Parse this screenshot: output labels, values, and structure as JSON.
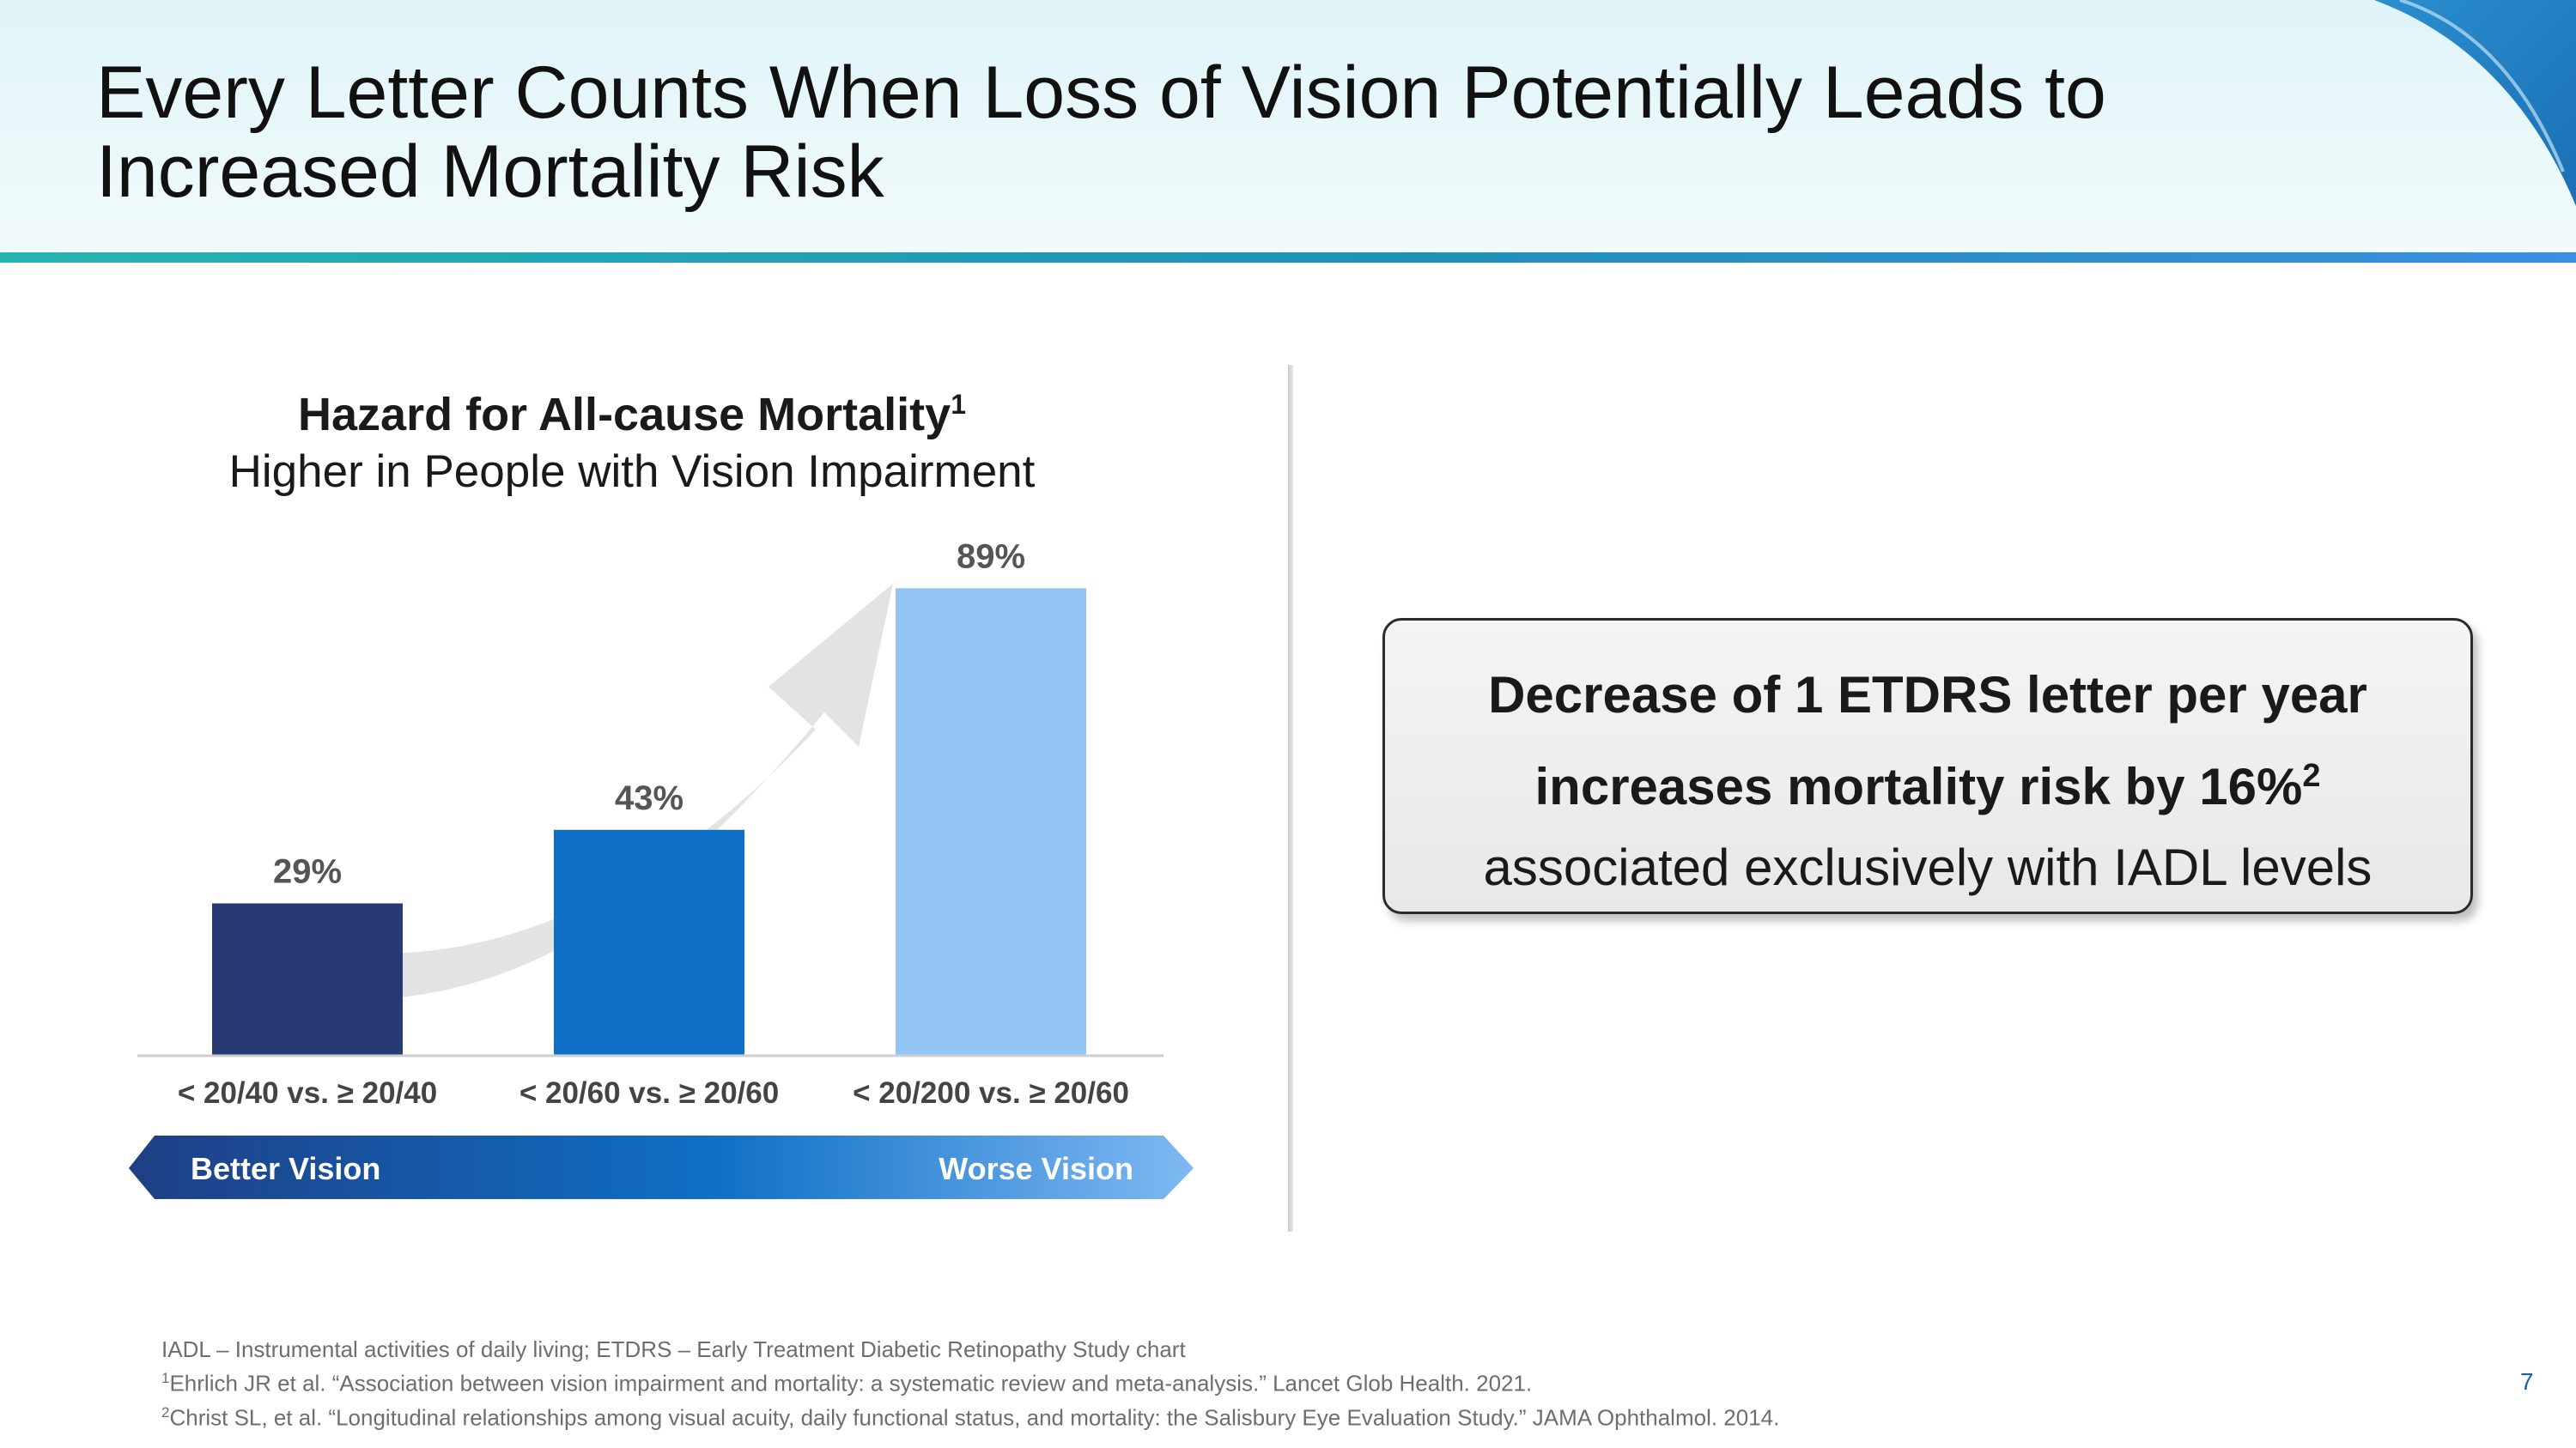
{
  "slide": {
    "title_line1": "Every Letter Counts When Loss of Vision Potentially Leads to",
    "title_line2": "Increased Mortality Risk",
    "page_number": "7"
  },
  "chart_data": {
    "type": "bar",
    "title": "Hazard for All-cause Mortality",
    "title_superscript": "1",
    "subtitle": "Higher in People with Vision Impairment",
    "categories": [
      "< 20/40 vs. ≥ 20/40",
      "< 20/60 vs. ≥ 20/60",
      "< 20/200 vs. ≥ 20/60"
    ],
    "values": [
      29,
      43,
      89
    ],
    "data_labels": [
      "29%",
      "43%",
      "89%"
    ],
    "unit": "%",
    "ylim": [
      0,
      100
    ],
    "grid": false,
    "legend": "none",
    "bar_colors": [
      "#283a73",
      "#0f6fc6",
      "#92c5f5"
    ],
    "scale_arrow": {
      "left_label": "Better Vision",
      "right_label": "Worse Vision"
    }
  },
  "callout": {
    "line1": "Decrease of 1 ETDRS letter per year",
    "line2": "increases mortality risk by 16%",
    "line2_superscript": "2",
    "line3": "associated exclusively with IADL levels"
  },
  "footnotes": {
    "abbrev": "IADL – Instrumental activities of daily living; ETDRS – Early Treatment Diabetic Retinopathy Study chart",
    "ref1_mark": "1",
    "ref1": "Ehrlich JR et al. “Association between vision impairment and mortality: a systematic review and meta-analysis.” Lancet Glob Health. 2021.",
    "ref2_mark": "2",
    "ref2": "Christ SL, et al. “Longitudinal relationships among visual acuity, daily functional status, and mortality: the Salisbury Eye Evaluation Study.” JAMA Ophthalmol. 2014."
  },
  "colors": {
    "accent_teal": "#26b5b0",
    "accent_blue": "#3a8fde",
    "arrow_gray": "#e3e3e3"
  }
}
